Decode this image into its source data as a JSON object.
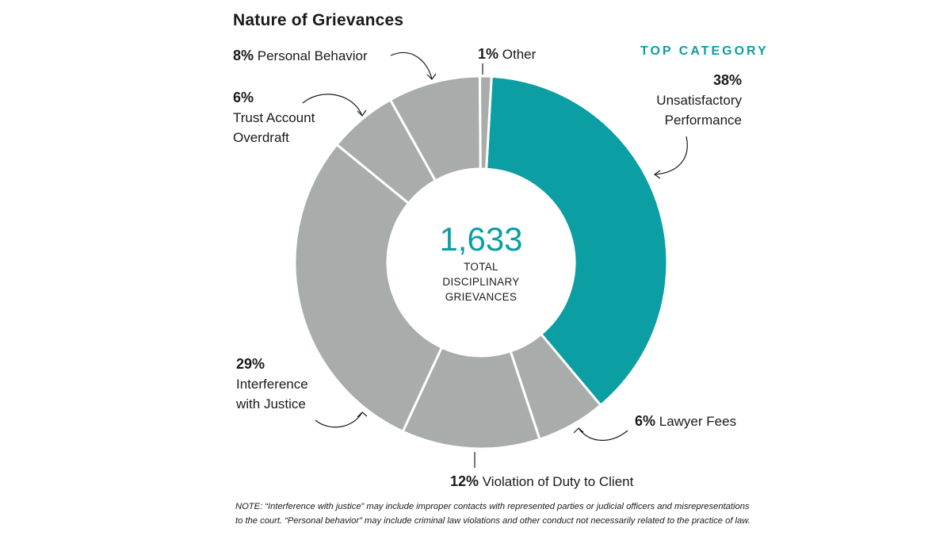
{
  "chart_data": {
    "type": "pie",
    "title": "Nature of Grievances",
    "total_value": "1,633",
    "total_label": [
      "TOTAL",
      "DISCIPLINARY",
      "GRIEVANCES"
    ],
    "top_category_label": "TOP CATEGORY",
    "segments": [
      {
        "pct_label": "38%",
        "label": "Unsatisfactory Performance",
        "value": 38,
        "color": "#0b9ea3"
      },
      {
        "pct_label": "6%",
        "label": "Lawyer Fees",
        "value": 6,
        "color": "#a8acab"
      },
      {
        "pct_label": "12%",
        "label": "Violation of Duty to Client",
        "value": 12,
        "color": "#a8acab"
      },
      {
        "pct_label": "29%",
        "label": "Interference with Justice",
        "value": 29,
        "color": "#a8acab"
      },
      {
        "pct_label": "6%",
        "label": "Trust Account Overdraft",
        "value": 6,
        "color": "#a8acab"
      },
      {
        "pct_label": "8%",
        "label": "Personal Behavior",
        "value": 8,
        "color": "#a8acab"
      },
      {
        "pct_label": "1%",
        "label": "Other",
        "value": 1,
        "color": "#a8acab"
      }
    ],
    "label_lines": {
      "unsatisfactory": [
        "Unsatisfactory",
        "Performance"
      ],
      "trust": [
        "Trust Account",
        "Overdraft"
      ],
      "interference": [
        "Interference",
        "with Justice"
      ]
    },
    "note": "NOTE: “Interference with justice” may include improper contacts with represented parties or judicial officers and misrepresentations to the court. “Personal behavior” may include criminal law violations and other conduct not necessarily related to the practice of law."
  }
}
